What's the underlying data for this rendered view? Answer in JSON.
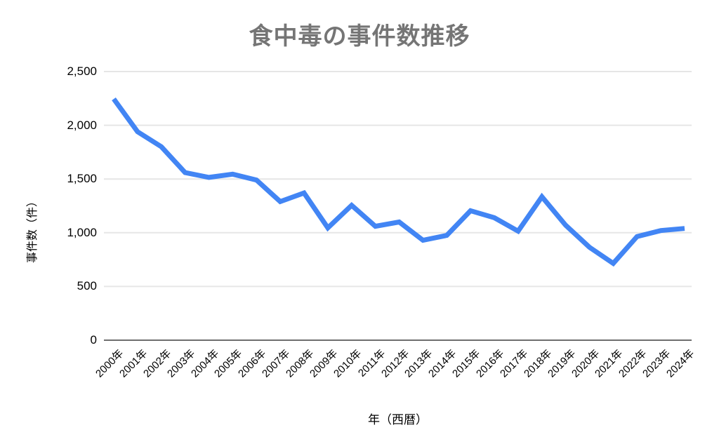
{
  "chart_data": {
    "type": "line",
    "title": "食中毒の事件数推移",
    "xlabel": "年（西暦）",
    "ylabel": "事件数（件）",
    "categories": [
      "2000年",
      "2001年",
      "2002年",
      "2003年",
      "2004年",
      "2005年",
      "2006年",
      "2007年",
      "2008年",
      "2009年",
      "2010年",
      "2011年",
      "2012年",
      "2013年",
      "2014年",
      "2015年",
      "2016年",
      "2017年",
      "2018年",
      "2019年",
      "2020年",
      "2021年",
      "2022年",
      "2023年",
      "2024年"
    ],
    "values": [
      2245,
      1940,
      1800,
      1560,
      1515,
      1545,
      1490,
      1290,
      1370,
      1045,
      1255,
      1060,
      1100,
      930,
      975,
      1205,
      1140,
      1015,
      1335,
      1070,
      865,
      715,
      965,
      1020,
      1040
    ],
    "ylim": [
      0,
      2500
    ],
    "ytick_step": 500,
    "yticks": [
      "0",
      "500",
      "1,000",
      "1,500",
      "2,000",
      "2,500"
    ],
    "grid": "horizontal",
    "legend": "none",
    "colors": {
      "line": "#4285f4",
      "grid": "#e6e6e6",
      "axis": "#6e6e6e",
      "title": "#757575",
      "tick_text": "#000000"
    }
  }
}
